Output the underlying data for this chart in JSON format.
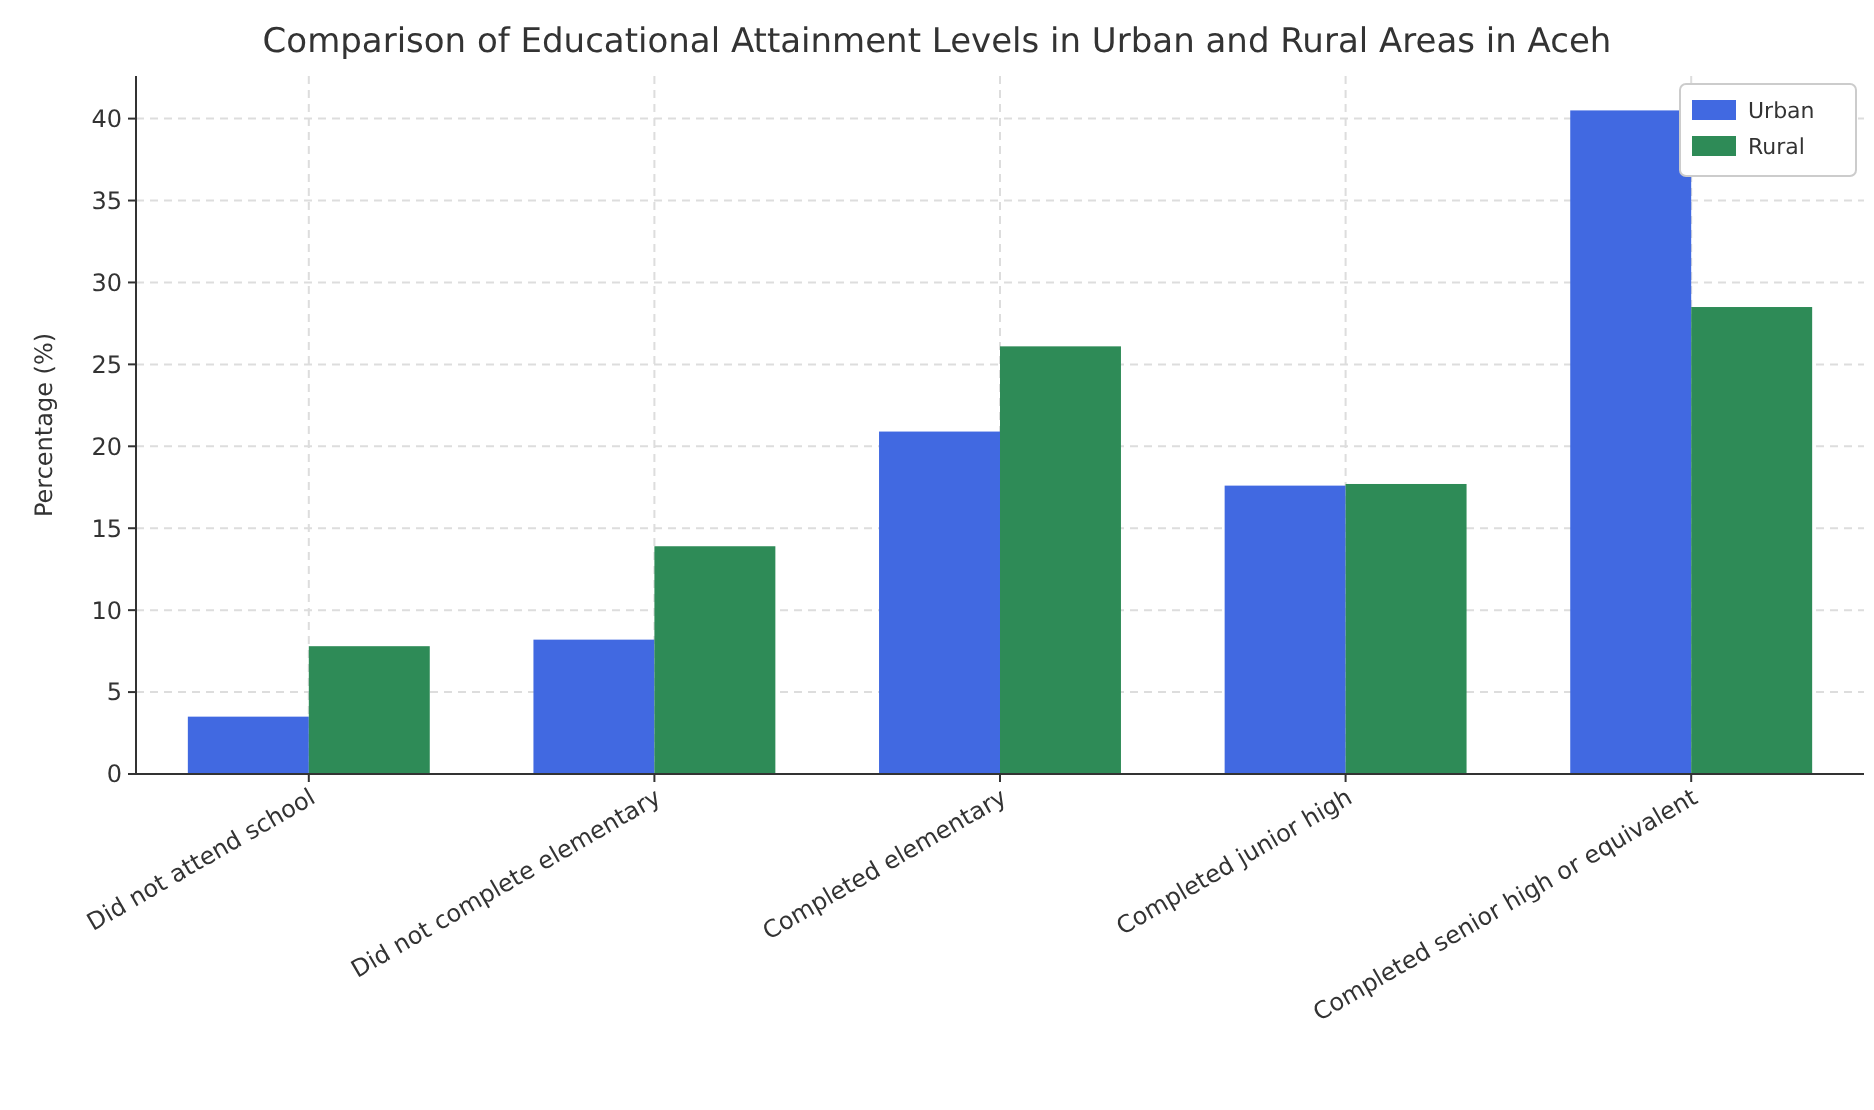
{
  "chart_data": {
    "type": "bar",
    "title": "Comparison of Educational Attainment Levels in Urban and Rural Areas in Aceh",
    "ylabel": "Percentage (%)",
    "categories": [
      "Did not attend school",
      "Did not complete elementary",
      "Completed elementary",
      "Completed junior high",
      "Completed senior high or equivalent"
    ],
    "series": [
      {
        "name": "Urban",
        "color": "#4169e1",
        "values": [
          3.5,
          8.2,
          20.9,
          17.6,
          40.5
        ]
      },
      {
        "name": "Rural",
        "color": "#2e8b57",
        "values": [
          7.8,
          13.9,
          26.1,
          17.7,
          28.5
        ]
      }
    ],
    "ylim": [
      0,
      42.6
    ],
    "yticks": [
      0,
      5,
      10,
      15,
      20,
      25,
      30,
      35,
      40
    ],
    "grid": true,
    "legend": "top right"
  }
}
